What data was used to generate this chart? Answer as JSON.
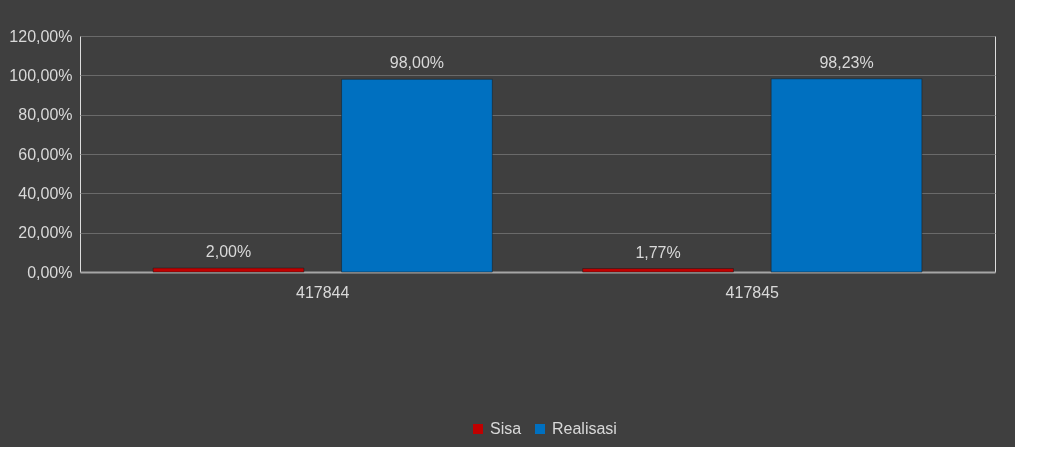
{
  "chart_data": {
    "type": "bar",
    "categories": [
      "417844",
      "417845"
    ],
    "series": [
      {
        "name": "Sisa",
        "color": "#c00000",
        "values": [
          2.0,
          1.77
        ],
        "value_labels": [
          "2,00%",
          "1,77%"
        ]
      },
      {
        "name": "Realisasi",
        "color": "#0070c0",
        "values": [
          98.0,
          98.23
        ],
        "value_labels": [
          "98,00%",
          "98,23%"
        ]
      }
    ],
    "ylim": [
      0,
      120
    ],
    "yticks": [
      {
        "value": 0,
        "label": "0,00%"
      },
      {
        "value": 20,
        "label": "20,00%"
      },
      {
        "value": 40,
        "label": "40,00%"
      },
      {
        "value": 60,
        "label": "60,00%"
      },
      {
        "value": 80,
        "label": "80,00%"
      },
      {
        "value": 100,
        "label": "100,00%"
      },
      {
        "value": 120,
        "label": "120,00%"
      }
    ],
    "grid": "y",
    "legend": "bottom"
  }
}
